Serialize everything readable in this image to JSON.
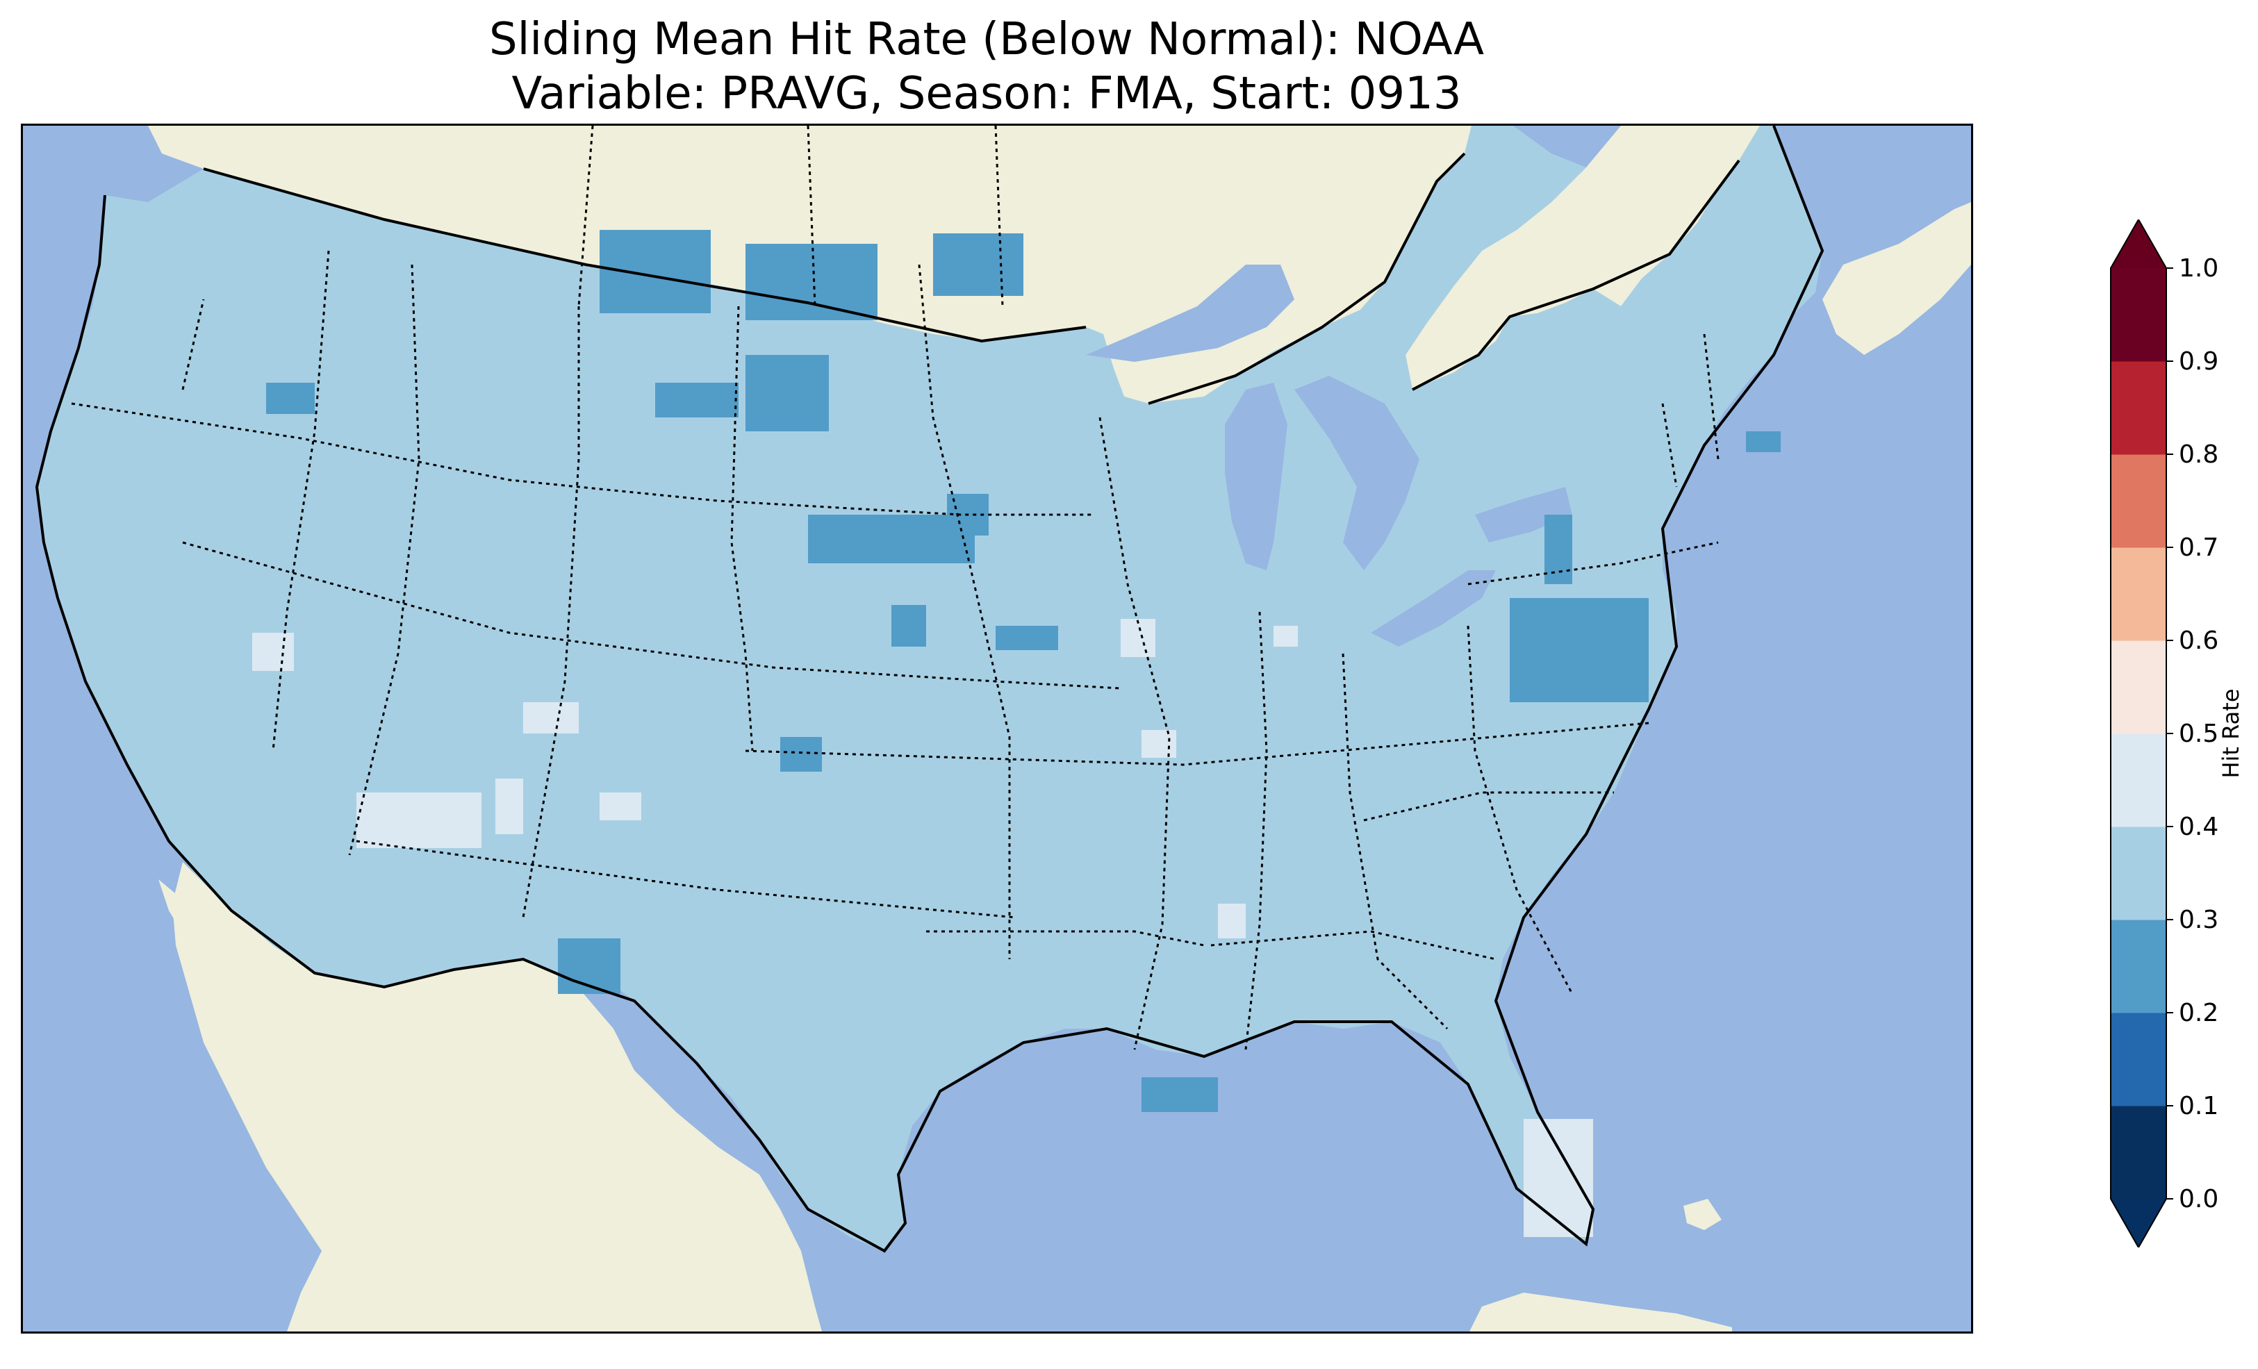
{
  "title": {
    "line1": "Sliding Mean Hit Rate (Below Normal): NOAA",
    "line2": "Variable: PRAVG, Season: FMA, Start: 0913"
  },
  "map": {
    "region": "Contiguous United States",
    "ocean_color": "#97b6e1",
    "land_color": "#efefdb",
    "base_value_color": "#a7cfe4",
    "dominant_hit_rate_bin": [
      0.3,
      0.4
    ],
    "lower_patches_bin": [
      0.2,
      0.3
    ],
    "higher_patches_bin": [
      0.4,
      0.5
    ],
    "lower_patch_regions": [
      "Montana north border",
      "Wyoming",
      "Nebraska",
      "Kansas",
      "Virginia",
      "Louisiana coast",
      "Massachusetts"
    ],
    "higher_patch_regions": [
      "Arizona",
      "New Mexico",
      "Illinois",
      "South Florida"
    ]
  },
  "colorbar": {
    "label": "Hit Rate",
    "ticks": [
      "0.0",
      "0.1",
      "0.2",
      "0.3",
      "0.4",
      "0.5",
      "0.6",
      "0.7",
      "0.8",
      "0.9",
      "1.0"
    ],
    "colors": [
      "#053061",
      "#2166ac",
      "#4393c3",
      "#92c5de",
      "#d1e5f0",
      "#f7f7f7",
      "#fddbc7",
      "#f4a582",
      "#d6604d",
      "#b2182b"
    ],
    "under_color": "#053061",
    "over_color": "#67001f",
    "render_colors": [
      "#08305f",
      "#2468ad",
      "#529cc8",
      "#a7cfe4",
      "#dce9f2",
      "#f8e7de",
      "#f4b999",
      "#e07760",
      "#b6222f",
      "#6a0122"
    ]
  }
}
